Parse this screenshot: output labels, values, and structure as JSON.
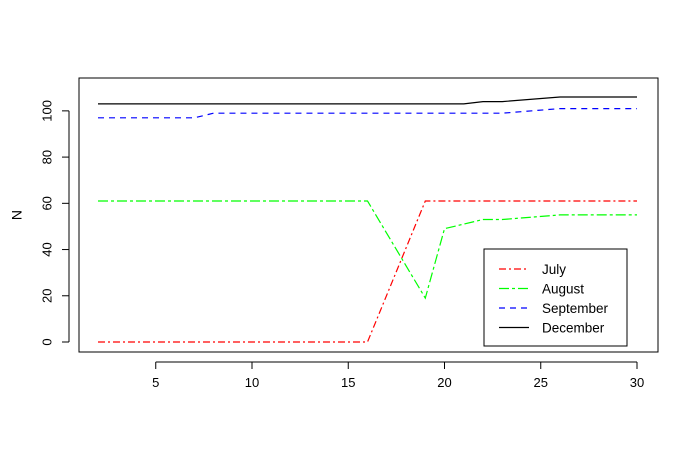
{
  "chart_data": {
    "type": "line",
    "title": "",
    "xlabel": "",
    "ylabel": "N",
    "xlim": [
      2,
      30
    ],
    "ylim": [
      0,
      106
    ],
    "xticks": [
      5,
      10,
      15,
      20,
      25,
      30
    ],
    "yticks": [
      0,
      20,
      40,
      60,
      80,
      100
    ],
    "legend_position": "bottom-right",
    "series": [
      {
        "name": "July",
        "color": "#ff0000",
        "dash": "dashdot",
        "x": [
          2,
          16,
          19,
          30
        ],
        "y": [
          0,
          0,
          61,
          61
        ]
      },
      {
        "name": "August",
        "color": "#00ff00",
        "dash": "longdash-dot",
        "x": [
          2,
          16,
          19,
          20,
          22,
          23,
          26,
          30
        ],
        "y": [
          61,
          61,
          19,
          49,
          53,
          53,
          55,
          55
        ]
      },
      {
        "name": "September",
        "color": "#0000ff",
        "dash": "dashed",
        "x": [
          2,
          7,
          8,
          23,
          26,
          30
        ],
        "y": [
          97,
          97,
          99,
          99,
          101,
          101
        ]
      },
      {
        "name": "December",
        "color": "#000000",
        "dash": "solid",
        "x": [
          2,
          21,
          22,
          23,
          26,
          30
        ],
        "y": [
          103,
          103,
          104,
          104,
          106,
          106
        ]
      }
    ]
  }
}
